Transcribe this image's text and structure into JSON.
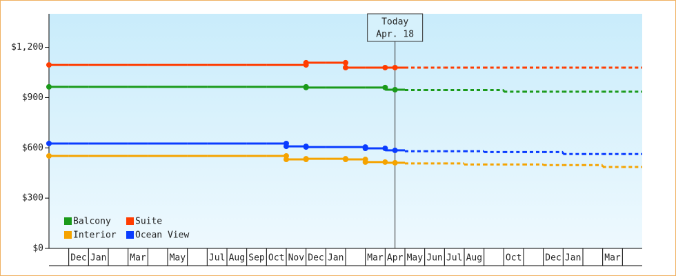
{
  "chart_data": {
    "type": "step-line",
    "categories": [
      null,
      "Dec",
      "Jan",
      null,
      "Mar",
      null,
      "May",
      null,
      "Jul",
      "Aug",
      "Sep",
      "Oct",
      "Nov",
      "Dec",
      "Jan",
      null,
      "Mar",
      "Apr",
      "May",
      "Jun",
      "Jul",
      "Aug",
      null,
      "Oct",
      null,
      "Dec",
      "Jan",
      null,
      "Mar",
      null
    ],
    "series": [
      {
        "name": "Balcony",
        "color": "#1a9a1a",
        "values": [
          964,
          964,
          964,
          964,
          964,
          964,
          964,
          964,
          964,
          964,
          964,
          964,
          964,
          960,
          960,
          960,
          960,
          947,
          945,
          945,
          945,
          945,
          945,
          935,
          935,
          935,
          935,
          935,
          935,
          935
        ]
      },
      {
        "name": "Suite",
        "color": "#ff3c00",
        "values": [
          1095,
          1095,
          1095,
          1095,
          1095,
          1095,
          1095,
          1095,
          1095,
          1095,
          1095,
          1095,
          1095,
          1108,
          1108,
          1079,
          1079,
          1079,
          1079,
          1079,
          1079,
          1079,
          1079,
          1079,
          1079,
          1079,
          1079,
          1079,
          1079,
          1079
        ]
      },
      {
        "name": "Interior",
        "color": "#f5a300",
        "values": [
          552,
          552,
          552,
          552,
          552,
          552,
          552,
          552,
          552,
          552,
          552,
          552,
          531,
          535,
          535,
          531,
          515,
          511,
          507,
          507,
          507,
          501,
          501,
          501,
          501,
          497,
          497,
          497,
          486,
          486
        ]
      },
      {
        "name": "Ocean View",
        "color": "#0a3cff",
        "values": [
          626,
          626,
          626,
          626,
          626,
          626,
          626,
          626,
          626,
          626,
          626,
          626,
          609,
          605,
          605,
          605,
          597,
          585,
          580,
          580,
          580,
          580,
          575,
          575,
          575,
          575,
          563,
          563,
          563,
          563
        ]
      }
    ],
    "ylim": [
      0,
      1400
    ],
    "yticks": [
      {
        "value": 0,
        "label": "$0"
      },
      {
        "value": 300,
        "label": "$300"
      },
      {
        "value": 600,
        "label": "$600"
      },
      {
        "value": 900,
        "label": "$900"
      },
      {
        "value": 1200,
        "label": "$1,200"
      }
    ],
    "annotation": {
      "lines": [
        "Today",
        "Apr. 18"
      ],
      "category_index": 17
    },
    "legend": "bottom-left"
  }
}
